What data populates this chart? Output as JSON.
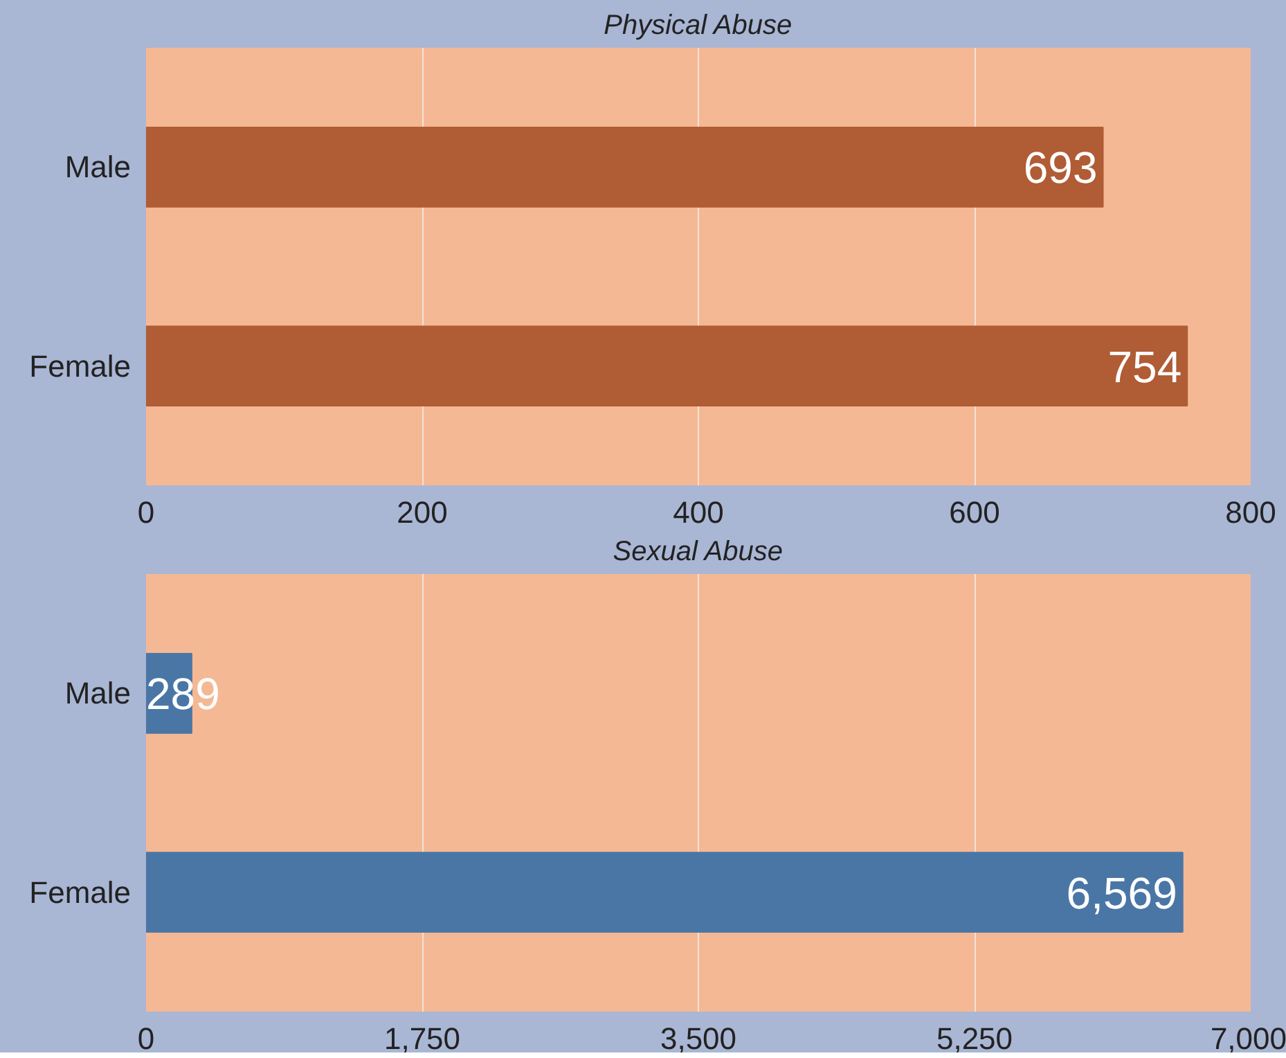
{
  "chart_data": [
    {
      "type": "bar",
      "orientation": "horizontal",
      "title": "Physical Abuse",
      "categories": [
        "Male",
        "Female"
      ],
      "values": [
        693,
        754
      ],
      "color": "#b05c35",
      "xlim": [
        0,
        800
      ],
      "xticks": [
        0,
        200,
        400,
        600,
        800
      ],
      "grid": "x",
      "data_labels": true
    },
    {
      "type": "bar",
      "orientation": "horizontal",
      "title": "Sexual Abuse",
      "categories": [
        "Male",
        "Female"
      ],
      "values": [
        289,
        6569
      ],
      "color": "#4a76a6",
      "xlim": [
        0,
        7000
      ],
      "xticks": [
        0,
        {
          "value": 1750,
          "label": "1,750"
        },
        {
          "value": 3500,
          "label": "3,500"
        },
        {
          "value": 5250,
          "label": "5,250"
        },
        {
          "value": 7000,
          "label": "7,000"
        }
      ],
      "grid": "x",
      "value_labels": [
        "289",
        "6,569"
      ]
    }
  ]
}
